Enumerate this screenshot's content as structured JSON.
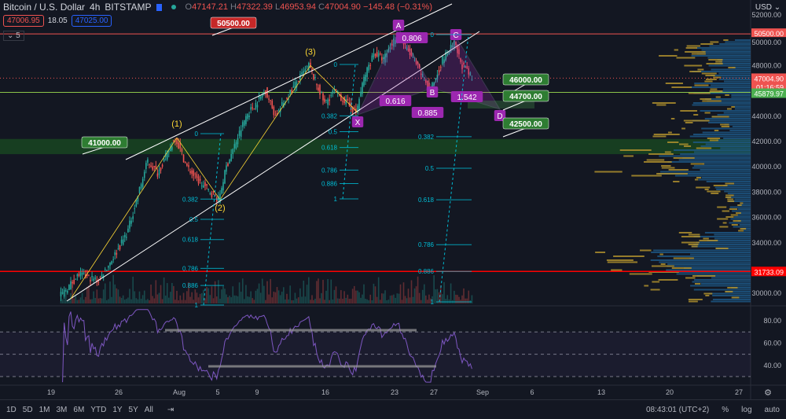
{
  "header": {
    "symbol": "Bitcoin / U.S. Dollar",
    "interval": "4h",
    "exchange": "BITSTAMP",
    "open_label": "O",
    "open": "47147.21",
    "high_label": "H",
    "high": "47322.39",
    "low_label": "L",
    "low": "46953.94",
    "close_label": "C",
    "close": "47004.90",
    "change": "−145.48 (−0.31%)",
    "bid": "47006.95",
    "spread": "18.05",
    "ask": "47025.00",
    "indicators_collapsed": "5"
  },
  "colors": {
    "up": "#26a69a",
    "down": "#ef5350",
    "background": "#131722",
    "pattern": "#9c27b0",
    "fib": "#00bcd4",
    "channel": "#ffffff",
    "wave": "#fdd835"
  },
  "chart_data": {
    "type": "candlestick",
    "currency": "USD",
    "ylim": [
      29200,
      53000
    ],
    "y_ticks": [
      "52000.00",
      "50000.00",
      "48000.00",
      "44000.00",
      "42000.00",
      "40000.00",
      "38000.00",
      "36000.00",
      "34000.00",
      "30000.00"
    ],
    "x_ticks": [
      "19",
      "26",
      "Aug",
      "5",
      "9",
      "16",
      "23",
      "27",
      "Sep",
      "6",
      "13",
      "20",
      "27"
    ],
    "price_path_pivots_day_from_jul19": [
      [
        1,
        29700
      ],
      [
        3,
        31500
      ],
      [
        5,
        31000
      ],
      [
        7,
        33500
      ],
      [
        8,
        35000
      ],
      [
        10,
        40500
      ],
      [
        11,
        39500
      ],
      [
        12.8,
        42300
      ],
      [
        14,
        40000
      ],
      [
        15,
        39000
      ],
      [
        17.2,
        37400
      ],
      [
        18,
        40000
      ],
      [
        20,
        44000
      ],
      [
        22,
        46000
      ],
      [
        23,
        44000
      ],
      [
        25,
        46500
      ],
      [
        26.4,
        48000
      ],
      [
        28,
        45000
      ],
      [
        29,
        46000
      ],
      [
        31.2,
        44300
      ],
      [
        32,
        47000
      ],
      [
        33,
        49000
      ],
      [
        34,
        48500
      ],
      [
        35.4,
        50500
      ],
      [
        37,
        48500
      ],
      [
        38.8,
        46000
      ],
      [
        40,
        48500
      ],
      [
        41.2,
        49700
      ],
      [
        42,
        48000
      ],
      [
        43,
        47004.9
      ]
    ],
    "price_labels": {
      "last": "47004.90",
      "countdown": "01:16:59",
      "green_line": "45879.97",
      "resistance": "50500.00",
      "support": "31733.09"
    },
    "levels": {
      "resistance": 50500,
      "support": 31733.09,
      "green_line": 45879.97,
      "last": 47004.9
    },
    "callouts": [
      "50500.00",
      "41000.00",
      "46000.00",
      "44700.00",
      "42500.00"
    ],
    "waves": [
      "(1)",
      "(2)",
      "(3)"
    ],
    "harmonic": {
      "points": [
        "X",
        "A",
        "B",
        "C",
        "D"
      ],
      "ratios": [
        "0.616",
        "0.806",
        "0.885",
        "1.542"
      ]
    },
    "fib_levels": [
      "0",
      "0.382",
      "0.5",
      "0.618",
      "0.786",
      "0.886",
      "1"
    ],
    "rsi": {
      "ticks": [
        "80.00",
        "60.00",
        "40.00"
      ],
      "bands": [
        30,
        50,
        70
      ]
    }
  },
  "bottom_bar": {
    "ranges": [
      "1D",
      "5D",
      "1M",
      "3M",
      "6M",
      "YTD",
      "1Y",
      "5Y",
      "All"
    ],
    "time": "08:43:01 (UTC+2)",
    "percent": "%",
    "log": "log",
    "auto": "auto"
  }
}
